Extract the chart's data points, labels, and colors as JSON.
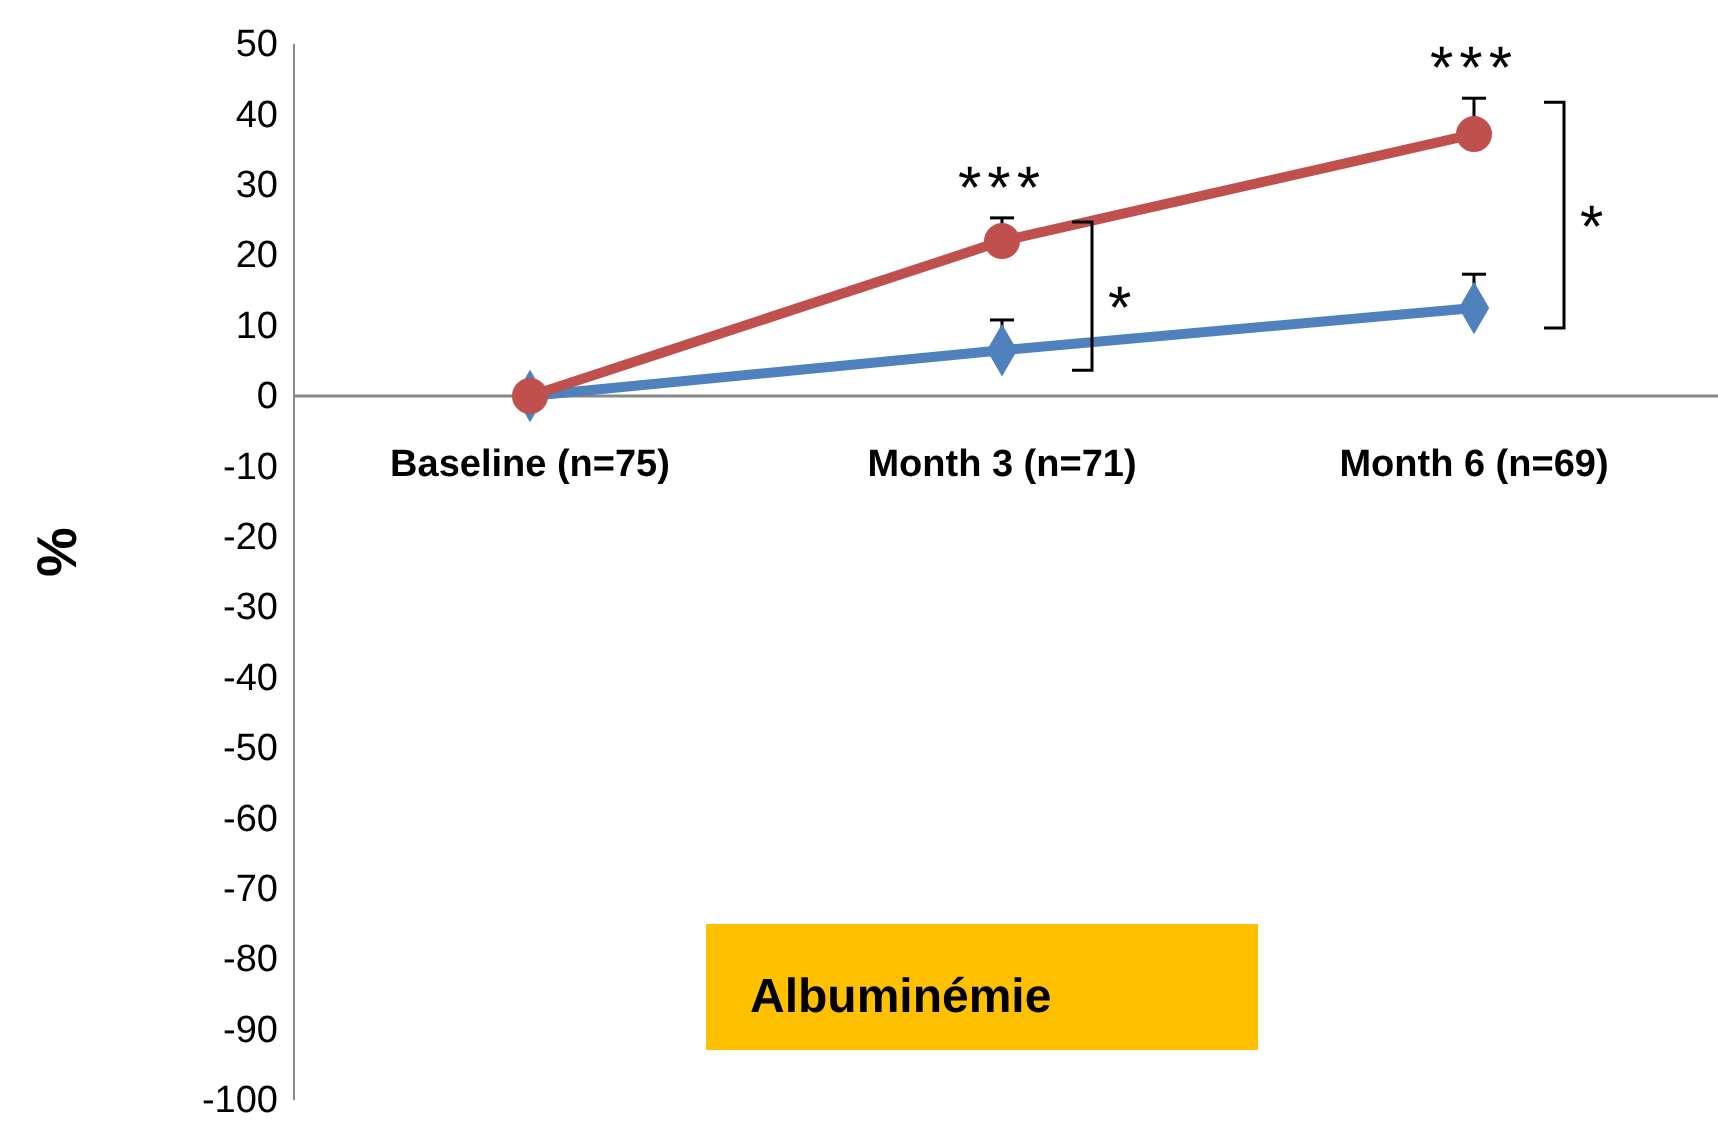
{
  "chart_data": {
    "type": "line",
    "ylabel": "%",
    "categories": [
      "Baseline (n=75)",
      "Month 3 (n=71)",
      "Month 6 (n=69)"
    ],
    "series": [
      {
        "color": "#4f81bd",
        "marker": "diamond",
        "values": [
          0,
          6.5,
          12.5
        ],
        "errors": [
          null,
          [
            6.5,
            10.8
          ],
          [
            12.5,
            17.3
          ]
        ]
      },
      {
        "color": "#c0504d",
        "marker": "circle",
        "values": [
          0,
          22,
          37.2
        ],
        "errors": [
          null,
          [
            22,
            25.3
          ],
          [
            37.2,
            42.3
          ]
        ]
      }
    ],
    "ylim": [
      -100,
      50
    ],
    "yticks": [
      -100,
      -90,
      -80,
      -70,
      -60,
      -50,
      -40,
      -30,
      -20,
      -10,
      0,
      10,
      20,
      30,
      40,
      50
    ],
    "grid": false,
    "annotations": [
      {
        "text": "***",
        "x": "Month 3 (n=71)",
        "y": 25.3
      },
      {
        "text": "***",
        "x": "Month 6 (n=69)",
        "y": 42.3
      },
      "*",
      "*",
      "Albuminémie"
    ]
  }
}
